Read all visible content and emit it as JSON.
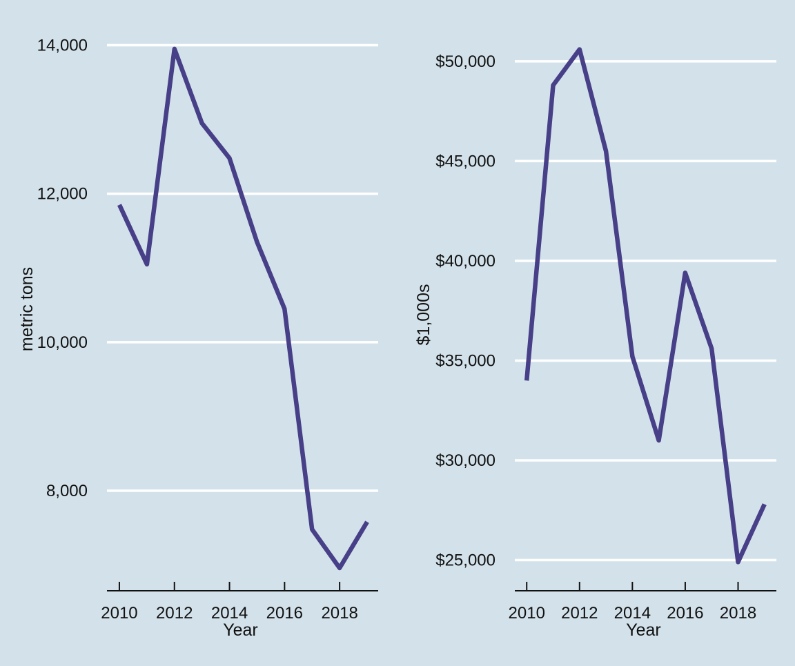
{
  "colors": {
    "background": "#d3e2ea",
    "line": "#473f87",
    "grid": "#ffffff",
    "axis": "#111111"
  },
  "chart_data": [
    {
      "type": "line",
      "xlabel": "Year",
      "ylabel": "metric tons",
      "x": [
        2010,
        2011,
        2012,
        2013,
        2014,
        2015,
        2016,
        2017,
        2018,
        2019
      ],
      "series": [
        {
          "values": [
            11850,
            11050,
            13950,
            12950,
            12480,
            11350,
            10450,
            7480,
            6960,
            7580
          ]
        }
      ],
      "xticks": [
        2010,
        2012,
        2014,
        2016,
        2018
      ],
      "xtick_labels": [
        "2010",
        "2012",
        "2014",
        "2016",
        "2018"
      ],
      "yticks": [
        8000,
        10000,
        12000,
        14000
      ],
      "ytick_labels": [
        "8,000",
        "10,000",
        "12,000",
        "14,000"
      ],
      "xlim": [
        2009.55,
        2019.4
      ],
      "ylim": [
        6690,
        14200
      ],
      "grid": "horizontal",
      "legend": "none"
    },
    {
      "type": "line",
      "xlabel": "Year",
      "ylabel": "$1,000s",
      "x": [
        2010,
        2011,
        2012,
        2013,
        2014,
        2015,
        2016,
        2017,
        2018,
        2019
      ],
      "series": [
        {
          "values": [
            34000,
            48800,
            50600,
            45500,
            35200,
            31000,
            39400,
            35600,
            24900,
            27800
          ]
        }
      ],
      "xticks": [
        2010,
        2012,
        2014,
        2016,
        2018
      ],
      "xtick_labels": [
        "2010",
        "2012",
        "2014",
        "2016",
        "2018"
      ],
      "yticks": [
        25000,
        30000,
        35000,
        40000,
        45000,
        50000
      ],
      "ytick_labels": [
        "$25,000",
        "$30,000",
        "$35,000",
        "$40,000",
        "$45,000",
        "$50,000"
      ],
      "xlim": [
        2009.55,
        2019.45
      ],
      "ylim": [
        23600,
        51000
      ],
      "grid": "horizontal",
      "legend": "none"
    }
  ]
}
